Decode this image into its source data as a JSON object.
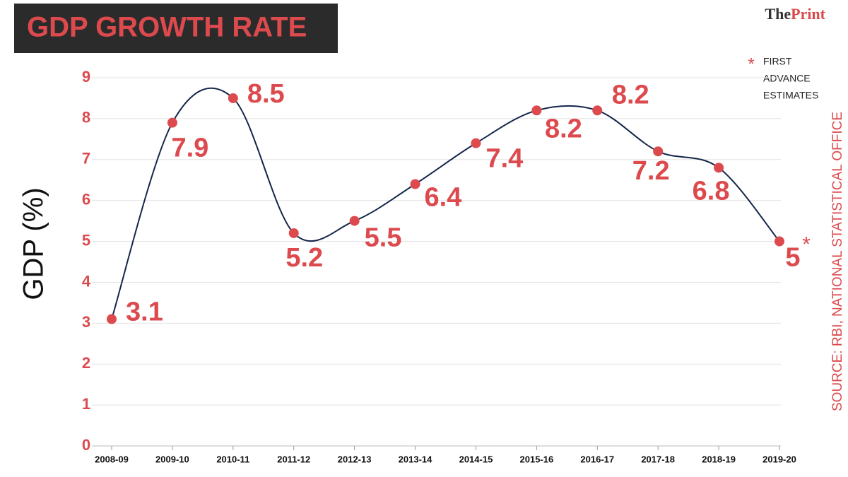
{
  "logo": {
    "prefix": "The",
    "name": "Print"
  },
  "chart_data": {
    "type": "line",
    "title": "GDP GROWTH RATE",
    "y_label": "GDP (%)",
    "source": "SOURCE: RBI, NATIONAL STATISTICAL OFFICE",
    "footnote": {
      "marker": "*",
      "lines": [
        "FIRST",
        "ADVANCE",
        "ESTIMATES"
      ]
    },
    "categories": [
      "2008-09",
      "2009-10",
      "2010-11",
      "2011-12",
      "2012-13",
      "2013-14",
      "2014-15",
      "2015-16",
      "2016-17",
      "2017-18",
      "2018-19",
      "2019-20"
    ],
    "values": [
      3.1,
      7.9,
      8.5,
      5.2,
      5.5,
      6.4,
      7.4,
      8.2,
      8.2,
      7.2,
      6.8,
      5
    ],
    "line_color": "#14264a",
    "marker_color": "#dc4a4e",
    "ylim": [
      0,
      9
    ],
    "yticks": [
      0,
      1,
      2,
      3,
      4,
      5,
      6,
      7,
      8,
      9
    ],
    "grid": true
  }
}
